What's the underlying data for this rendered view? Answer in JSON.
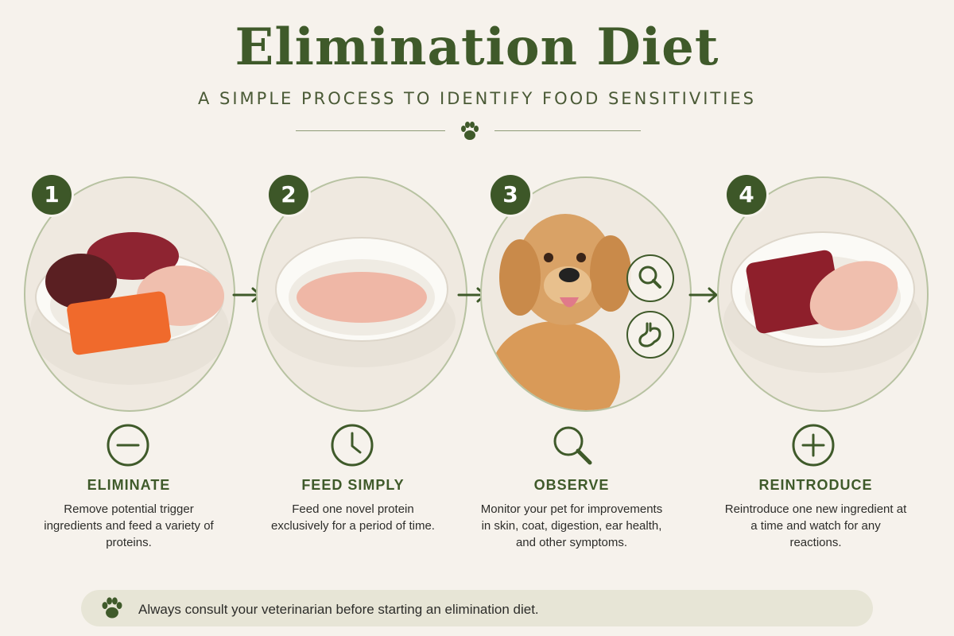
{
  "header": {
    "title": "Elimination Diet",
    "subtitle": "A SIMPLE PROCESS TO IDENTIFY FOOD SENSITIVITIES"
  },
  "colors": {
    "accent": "#3d5728",
    "background": "#f6f2ec",
    "circle_border": "#b7c2a1",
    "note_background": "#e7e5d6"
  },
  "steps": [
    {
      "number": "1",
      "title": "ELIMINATE",
      "description": "Remove potential trigger ingredients and feed a variety of proteins.",
      "icon": "minus-circle-icon"
    },
    {
      "number": "2",
      "title": "FEED SIMPLY",
      "description": "Feed one novel protein exclusively for a period of time.",
      "icon": "clock-icon"
    },
    {
      "number": "3",
      "title": "OBSERVE",
      "description": "Monitor your pet for improvements in skin, coat, digestion, ear health, and other symptoms.",
      "icon": "magnifier-icon"
    },
    {
      "number": "4",
      "title": "REINTRODUCE",
      "description": "Reintroduce one new ingredient at a time and watch for any reactions.",
      "icon": "plus-circle-icon"
    }
  ],
  "footer": {
    "note": "Always consult your veterinarian before starting an elimination diet.",
    "icon": "paw-icon"
  }
}
